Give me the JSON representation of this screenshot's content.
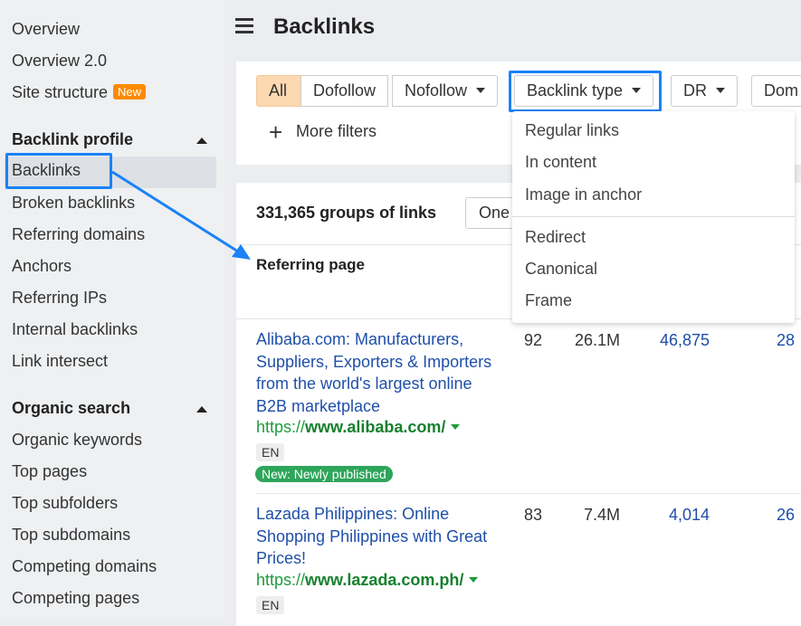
{
  "sidebar": {
    "items": [
      {
        "label": "Overview"
      },
      {
        "label": "Overview 2.0"
      },
      {
        "label": "Site structure",
        "badge": "New"
      }
    ],
    "backlink_profile": {
      "title": "Backlink profile",
      "items": [
        "Backlinks",
        "Broken backlinks",
        "Referring domains",
        "Anchors",
        "Referring IPs",
        "Internal backlinks",
        "Link intersect"
      ]
    },
    "organic_search": {
      "title": "Organic search",
      "items": [
        "Organic keywords",
        "Top pages",
        "Top subfolders",
        "Top subdomains",
        "Competing domains",
        "Competing pages"
      ]
    }
  },
  "header": {
    "title": "Backlinks"
  },
  "filters": {
    "all": "All",
    "dofollow": "Dofollow",
    "nofollow": "Nofollow",
    "backlink_type": "Backlink type",
    "dr": "DR",
    "dom": "Dom",
    "more_filters": "More filters"
  },
  "dropdown": {
    "items": [
      "Regular links",
      "In content",
      "Image in anchor",
      "Redirect",
      "Canonical",
      "Frame"
    ]
  },
  "table": {
    "count": "331,365 groups of links",
    "group_button": "One",
    "column_referring_page": "Referring page",
    "rows": [
      {
        "title": "Alibaba.com: Manufacturers, Suppliers, Exporters & Importers from the world's largest online B2B marketplace",
        "url_prefix": "https://",
        "url_domain": "www.alibaba.com/",
        "lang": "EN",
        "tag": "New: Newly published",
        "dr": "92",
        "traffic": "26.1M",
        "count": "46,875",
        "last": "28"
      },
      {
        "title": "Lazada Philippines: Online Shopping Philippines with Great Prices!",
        "url_prefix": "https://",
        "url_domain": "www.lazada.com.ph/",
        "lang": "EN",
        "dr": "83",
        "traffic": "7.4M",
        "count": "4,014",
        "last": "26"
      }
    ]
  },
  "colors": {
    "highlight": "#1a82f7",
    "active_filter": "#fcd9b0",
    "link": "#1f4fa8",
    "url": "#1f9a3a",
    "new_badge": "#ff8a00"
  }
}
